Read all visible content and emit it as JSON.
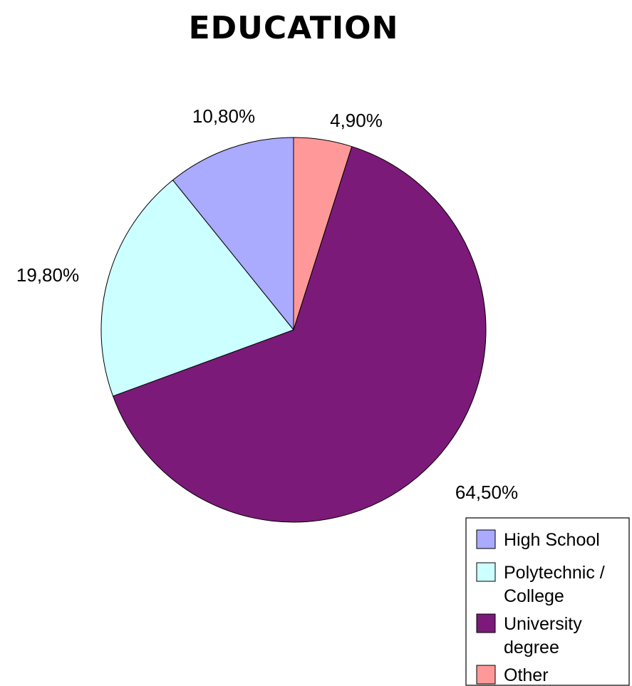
{
  "chart_data": {
    "type": "pie",
    "title": "EDUCATION",
    "start_angle_deg": 0,
    "direction": "clockwise",
    "legend_position": "bottom-right",
    "slices": [
      {
        "name": "Other",
        "value": 4.9,
        "label": "4,90%",
        "color": "#ff9999",
        "legend_lines": [
          "Other"
        ]
      },
      {
        "name": "University degree",
        "value": 64.5,
        "label": "64,50%",
        "color": "#7b1a78",
        "legend_lines": [
          "University",
          "degree"
        ]
      },
      {
        "name": "Polytechnic / College",
        "value": 19.8,
        "label": "19,80%",
        "color": "#ccffff",
        "legend_lines": [
          "Polytechnic /",
          "College"
        ]
      },
      {
        "name": "High School",
        "value": 10.8,
        "label": "10,80%",
        "color": "#aaaaff",
        "legend_lines": [
          "High School"
        ]
      }
    ],
    "legend_order": [
      "High School",
      "Polytechnic / College",
      "University degree",
      "Other"
    ]
  }
}
